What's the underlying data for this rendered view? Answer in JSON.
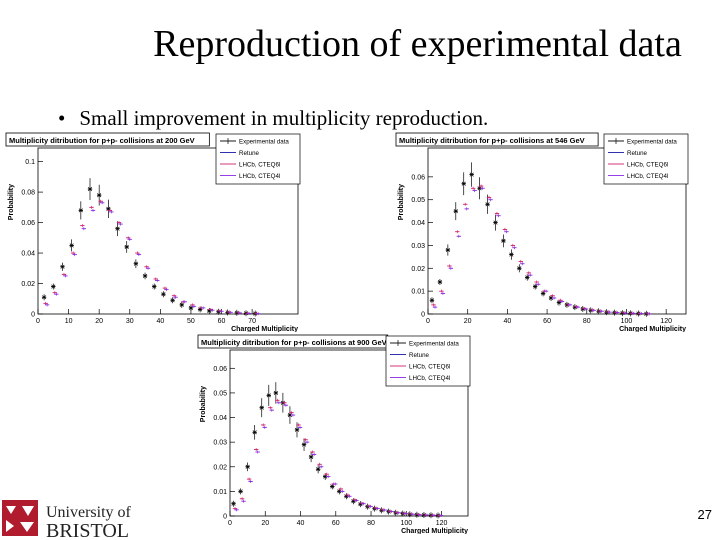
{
  "slide": {
    "title": "Reproduction of experimental data",
    "bullet": "Small improvement in multiplicity reproduction.",
    "page_number": "27"
  },
  "logo": {
    "line1": "University of",
    "line2": "BRISTOL"
  },
  "colors": {
    "data": "#000000",
    "tune1": "#1a1aa6",
    "tune2": "#d0206a",
    "tune3": "#8a2be2"
  },
  "chart_data": [
    {
      "type": "scatter",
      "title": "Multiplicity ditribution for p+p- collisions at 200 GeV",
      "xlabel": "Charged Multiplicity",
      "ylabel": "Probability",
      "xlim": [
        0,
        85
      ],
      "ylim": [
        0,
        0.105
      ],
      "xticks": [
        0,
        10,
        20,
        30,
        40,
        50,
        60,
        70
      ],
      "yticks": [
        0,
        0.02,
        0.04,
        0.06,
        0.08,
        0.1
      ],
      "ytick_labels": [
        "0",
        "0.02",
        "0.04",
        "0.06",
        "0.08",
        "0.1"
      ],
      "legend": [
        "Experimental data",
        "Retune",
        "LHCb, CTEQ6l",
        "LHCb, CTEQ4l"
      ],
      "series": [
        {
          "name": "Experimental data",
          "x": [
            2,
            5,
            8,
            11,
            14,
            17,
            20,
            23,
            26,
            29,
            32,
            35,
            38,
            41,
            44,
            47,
            50,
            53,
            56,
            59,
            62,
            65,
            68,
            71
          ],
          "y": [
            0.011,
            0.018,
            0.031,
            0.045,
            0.068,
            0.082,
            0.078,
            0.069,
            0.056,
            0.044,
            0.033,
            0.025,
            0.018,
            0.013,
            0.009,
            0.006,
            0.004,
            0.003,
            0.002,
            0.0015,
            0.001,
            0.0008,
            0.0005,
            0.0003
          ]
        },
        {
          "name": "LHCb, CTEQ6l",
          "x": [
            2,
            5,
            8,
            11,
            14,
            17,
            20,
            23,
            26,
            29,
            32,
            35,
            38,
            41,
            44,
            47,
            50,
            53,
            56,
            59,
            62,
            65,
            68,
            71
          ],
          "y": [
            0.007,
            0.014,
            0.026,
            0.04,
            0.058,
            0.07,
            0.074,
            0.068,
            0.06,
            0.05,
            0.04,
            0.031,
            0.023,
            0.017,
            0.012,
            0.008,
            0.006,
            0.004,
            0.003,
            0.002,
            0.0012,
            0.0008,
            0.0005,
            0.0003
          ]
        },
        {
          "name": "LHCb, CTEQ4l",
          "x": [
            2,
            5,
            8,
            11,
            14,
            17,
            20,
            23,
            26,
            29,
            32,
            35,
            38,
            41,
            44,
            47,
            50,
            53,
            56,
            59,
            62,
            65,
            68,
            71
          ],
          "y": [
            0.006,
            0.013,
            0.025,
            0.039,
            0.056,
            0.068,
            0.073,
            0.067,
            0.059,
            0.049,
            0.039,
            0.03,
            0.022,
            0.016,
            0.011,
            0.008,
            0.005,
            0.004,
            0.0025,
            0.0018,
            0.0011,
            0.0007,
            0.0004,
            0.0002
          ]
        }
      ]
    },
    {
      "type": "scatter",
      "title": "Multiplicity ditribution for p+p- collisions at 546 GeV",
      "xlabel": "Charged Multiplicity",
      "ylabel": "Probability",
      "xlim": [
        0,
        130
      ],
      "ylim": [
        0,
        0.07
      ],
      "xticks": [
        0,
        20,
        40,
        60,
        80,
        100,
        120
      ],
      "yticks": [
        0,
        0.01,
        0.02,
        0.03,
        0.04,
        0.05,
        0.06
      ],
      "ytick_labels": [
        "0",
        "0.01",
        "0.02",
        "0.03",
        "0.04",
        "0.05",
        "0.06"
      ],
      "legend": [
        "Experimental data",
        "Retune",
        "LHCb, CTEQ6l",
        "LHCb, CTEQ4l"
      ],
      "series": [
        {
          "name": "Experimental data",
          "x": [
            2,
            6,
            10,
            14,
            18,
            22,
            26,
            30,
            34,
            38,
            42,
            46,
            50,
            54,
            58,
            62,
            66,
            70,
            74,
            78,
            82,
            86,
            90,
            94,
            98,
            102,
            106,
            110
          ],
          "y": [
            0.006,
            0.014,
            0.028,
            0.045,
            0.057,
            0.061,
            0.055,
            0.048,
            0.04,
            0.032,
            0.026,
            0.02,
            0.016,
            0.012,
            0.009,
            0.007,
            0.005,
            0.004,
            0.003,
            0.0022,
            0.0016,
            0.0012,
            0.0008,
            0.0006,
            0.0004,
            0.0003,
            0.0002,
            0.0001
          ]
        },
        {
          "name": "LHCb, CTEQ6l",
          "x": [
            2,
            6,
            10,
            14,
            18,
            22,
            26,
            30,
            34,
            38,
            42,
            46,
            50,
            54,
            58,
            62,
            66,
            70,
            74,
            78,
            82,
            86,
            90,
            94,
            98,
            102,
            106,
            110
          ],
          "y": [
            0.004,
            0.01,
            0.021,
            0.036,
            0.048,
            0.055,
            0.056,
            0.051,
            0.044,
            0.037,
            0.03,
            0.023,
            0.018,
            0.014,
            0.01,
            0.008,
            0.006,
            0.004,
            0.0032,
            0.0024,
            0.0018,
            0.0013,
            0.0009,
            0.0007,
            0.0005,
            0.0003,
            0.0002,
            0.0001
          ]
        },
        {
          "name": "LHCb, CTEQ4l",
          "x": [
            2,
            6,
            10,
            14,
            18,
            22,
            26,
            30,
            34,
            38,
            42,
            46,
            50,
            54,
            58,
            62,
            66,
            70,
            74,
            78,
            82,
            86,
            90,
            94,
            98,
            102,
            106,
            110
          ],
          "y": [
            0.003,
            0.009,
            0.02,
            0.034,
            0.046,
            0.054,
            0.055,
            0.05,
            0.043,
            0.036,
            0.029,
            0.022,
            0.017,
            0.013,
            0.01,
            0.007,
            0.0055,
            0.004,
            0.003,
            0.0022,
            0.0016,
            0.0012,
            0.0008,
            0.0006,
            0.0004,
            0.0003,
            0.0002,
            0.0001
          ]
        }
      ]
    },
    {
      "type": "scatter",
      "title": "Multiplicity ditribution for p+p- collisions at 900 GeV",
      "xlabel": "Charged Multiplicity",
      "ylabel": "Probability",
      "xlim": [
        0,
        135
      ],
      "ylim": [
        0,
        0.065
      ],
      "xticks": [
        0,
        20,
        40,
        60,
        80,
        100,
        120
      ],
      "yticks": [
        0,
        0.01,
        0.02,
        0.03,
        0.04,
        0.05,
        0.06
      ],
      "ytick_labels": [
        "0",
        "0.01",
        "0.02",
        "0.03",
        "0.04",
        "0.05",
        "0.06"
      ],
      "legend": [
        "Experimental data",
        "Retune",
        "LHCb, CTEQ6l",
        "LHCb, CTEQ4l"
      ],
      "series": [
        {
          "name": "Experimental data",
          "x": [
            2,
            6,
            10,
            14,
            18,
            22,
            26,
            30,
            34,
            38,
            42,
            46,
            50,
            54,
            58,
            62,
            66,
            70,
            74,
            78,
            82,
            86,
            90,
            94,
            98,
            102,
            106,
            110,
            114,
            118
          ],
          "y": [
            0.005,
            0.01,
            0.02,
            0.034,
            0.044,
            0.049,
            0.05,
            0.046,
            0.041,
            0.035,
            0.029,
            0.024,
            0.019,
            0.016,
            0.012,
            0.01,
            0.008,
            0.006,
            0.0048,
            0.0038,
            0.003,
            0.0023,
            0.0018,
            0.0013,
            0.001,
            0.0007,
            0.0005,
            0.0004,
            0.0003,
            0.0002
          ]
        },
        {
          "name": "LHCb, CTEQ6l",
          "x": [
            2,
            6,
            10,
            14,
            18,
            22,
            26,
            30,
            34,
            38,
            42,
            46,
            50,
            54,
            58,
            62,
            66,
            70,
            74,
            78,
            82,
            86,
            90,
            94,
            98,
            102,
            106,
            110,
            114,
            118
          ],
          "y": [
            0.003,
            0.007,
            0.015,
            0.027,
            0.037,
            0.044,
            0.047,
            0.046,
            0.042,
            0.037,
            0.031,
            0.026,
            0.021,
            0.017,
            0.013,
            0.011,
            0.0085,
            0.0066,
            0.0052,
            0.004,
            0.0032,
            0.0025,
            0.0019,
            0.0014,
            0.0011,
            0.0008,
            0.0006,
            0.0004,
            0.0003,
            0.0002
          ]
        },
        {
          "name": "LHCb, CTEQ4l",
          "x": [
            2,
            6,
            10,
            14,
            18,
            22,
            26,
            30,
            34,
            38,
            42,
            46,
            50,
            54,
            58,
            62,
            66,
            70,
            74,
            78,
            82,
            86,
            90,
            94,
            98,
            102,
            106,
            110,
            114,
            118
          ],
          "y": [
            0.0025,
            0.006,
            0.014,
            0.026,
            0.036,
            0.043,
            0.046,
            0.045,
            0.041,
            0.036,
            0.03,
            0.025,
            0.02,
            0.016,
            0.013,
            0.01,
            0.008,
            0.0063,
            0.005,
            0.0039,
            0.003,
            0.0024,
            0.0018,
            0.0013,
            0.001,
            0.0007,
            0.0005,
            0.0004,
            0.0003,
            0.0002
          ]
        }
      ]
    }
  ]
}
